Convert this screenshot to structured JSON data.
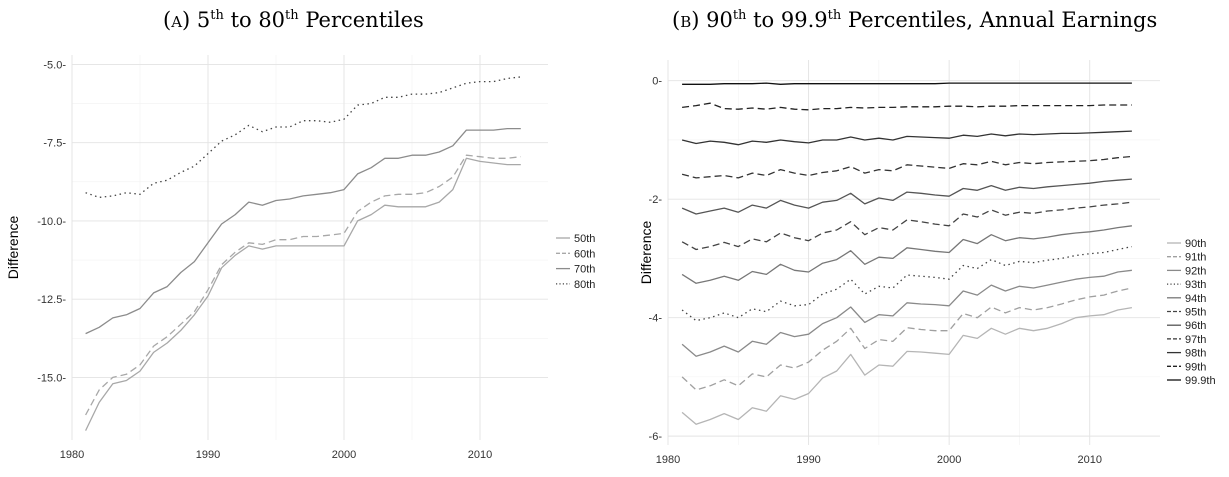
{
  "panel_a_title": {
    "prefix": "(",
    "sc": "A",
    "mid": ") 5",
    "sup1": "th",
    "mid2": " to 80",
    "sup2": "th",
    "rest": " Percentiles"
  },
  "panel_b_title": {
    "prefix": "(",
    "sc": "B",
    "mid": ") 90",
    "sup1": "th",
    "mid2": " to 99.9",
    "sup2": "th",
    "rest": " Percentiles, Annual Earnings"
  },
  "chart_data": [
    {
      "type": "line",
      "title": "(A) 5th to 80th Percentiles",
      "xlabel": "",
      "ylabel": "Difference",
      "xlim": [
        1980,
        2015
      ],
      "ylim": [
        -17,
        -4.7
      ],
      "x_ticks": [
        1980,
        1990,
        2000,
        2010
      ],
      "y_ticks": [
        -5.0,
        -7.5,
        -10.0,
        -12.5,
        -15.0
      ],
      "y_tick_labels": [
        "-5.0-",
        "-7.5-",
        "-10.0-",
        "-12.5-",
        "-15.0-"
      ],
      "grid": true,
      "legend_position": "right",
      "x": [
        1981,
        1982,
        1983,
        1984,
        1985,
        1986,
        1987,
        1988,
        1989,
        1990,
        1991,
        1992,
        1993,
        1994,
        1995,
        1996,
        1997,
        1998,
        1999,
        2000,
        2001,
        2002,
        2003,
        2004,
        2005,
        2006,
        2007,
        2008,
        2009,
        2010,
        2011,
        2012,
        2013
      ],
      "series": [
        {
          "name": "50th",
          "color": "#a8a8a8",
          "dash": "solid",
          "values": [
            -16.7,
            -15.8,
            -15.2,
            -15.1,
            -14.8,
            -14.2,
            -13.9,
            -13.5,
            -13.0,
            -12.4,
            -11.5,
            -11.1,
            -10.8,
            -10.9,
            -10.8,
            -10.8,
            -10.8,
            -10.8,
            -10.8,
            -10.8,
            -10.0,
            -9.8,
            -9.5,
            -9.55,
            -9.55,
            -9.55,
            -9.4,
            -9.0,
            -8.0,
            -8.1,
            -8.15,
            -8.2,
            -8.2
          ]
        },
        {
          "name": "60th",
          "color": "#a8a8a8",
          "dash": "dashed",
          "values": [
            -16.2,
            -15.4,
            -15.0,
            -14.9,
            -14.6,
            -14.0,
            -13.7,
            -13.3,
            -12.9,
            -12.2,
            -11.4,
            -11.0,
            -10.7,
            -10.75,
            -10.6,
            -10.6,
            -10.5,
            -10.5,
            -10.45,
            -10.4,
            -9.7,
            -9.4,
            -9.2,
            -9.15,
            -9.15,
            -9.1,
            -8.9,
            -8.6,
            -7.9,
            -7.95,
            -8.0,
            -8.0,
            -7.95
          ]
        },
        {
          "name": "70th",
          "color": "#8c8c8c",
          "dash": "solid",
          "values": [
            -13.6,
            -13.4,
            -13.1,
            -13.0,
            -12.8,
            -12.3,
            -12.1,
            -11.65,
            -11.3,
            -10.7,
            -10.1,
            -9.8,
            -9.4,
            -9.5,
            -9.35,
            -9.3,
            -9.2,
            -9.15,
            -9.1,
            -9.0,
            -8.5,
            -8.3,
            -8.0,
            -8.0,
            -7.9,
            -7.9,
            -7.8,
            -7.6,
            -7.1,
            -7.1,
            -7.1,
            -7.05,
            -7.05
          ]
        },
        {
          "name": "80th",
          "color": "#444444",
          "dash": "dotted",
          "values": [
            -9.1,
            -9.25,
            -9.2,
            -9.1,
            -9.15,
            -8.8,
            -8.7,
            -8.45,
            -8.25,
            -7.85,
            -7.45,
            -7.25,
            -6.95,
            -7.15,
            -7.0,
            -7.0,
            -6.8,
            -6.8,
            -6.85,
            -6.75,
            -6.3,
            -6.25,
            -6.05,
            -6.05,
            -5.95,
            -5.95,
            -5.9,
            -5.75,
            -5.6,
            -5.55,
            -5.55,
            -5.45,
            -5.4
          ]
        }
      ]
    },
    {
      "type": "line",
      "title": "(B) 90th to 99.9th Percentiles, Annual Earnings",
      "xlabel": "",
      "ylabel": "Difference",
      "xlim": [
        1980,
        2015
      ],
      "ylim": [
        -6.15,
        0.35
      ],
      "x_ticks": [
        1980,
        1990,
        2000,
        2010
      ],
      "y_ticks": [
        0,
        -2,
        -4,
        -6
      ],
      "y_tick_labels": [
        "0-",
        "-2-",
        "-4-",
        "-6-"
      ],
      "grid": true,
      "legend_position": "right",
      "x": [
        1981,
        1982,
        1983,
        1984,
        1985,
        1986,
        1987,
        1988,
        1989,
        1990,
        1991,
        1992,
        1993,
        1994,
        1995,
        1996,
        1997,
        1998,
        1999,
        2000,
        2001,
        2002,
        2003,
        2004,
        2005,
        2006,
        2007,
        2008,
        2009,
        2010,
        2011,
        2012,
        2013
      ],
      "series": [
        {
          "name": "90th",
          "color": "#b5b5b5",
          "dash": "solid",
          "values": [
            -5.6,
            -5.8,
            -5.72,
            -5.62,
            -5.72,
            -5.52,
            -5.58,
            -5.32,
            -5.38,
            -5.28,
            -5.02,
            -4.9,
            -4.62,
            -4.97,
            -4.8,
            -4.82,
            -4.57,
            -4.58,
            -4.6,
            -4.62,
            -4.3,
            -4.35,
            -4.18,
            -4.28,
            -4.18,
            -4.22,
            -4.18,
            -4.1,
            -4.0,
            -3.97,
            -3.95,
            -3.87,
            -3.83
          ]
        },
        {
          "name": "91th",
          "color": "#a0a0a0",
          "dash": "dashed",
          "values": [
            -5.0,
            -5.22,
            -5.15,
            -5.05,
            -5.15,
            -4.95,
            -5.0,
            -4.8,
            -4.85,
            -4.75,
            -4.55,
            -4.4,
            -4.18,
            -4.52,
            -4.37,
            -4.4,
            -4.17,
            -4.2,
            -4.22,
            -4.22,
            -3.93,
            -4.0,
            -3.82,
            -3.92,
            -3.83,
            -3.87,
            -3.83,
            -3.77,
            -3.7,
            -3.65,
            -3.62,
            -3.55,
            -3.5
          ]
        },
        {
          "name": "92th",
          "color": "#8a8a8a",
          "dash": "solid",
          "values": [
            -4.45,
            -4.65,
            -4.58,
            -4.48,
            -4.58,
            -4.4,
            -4.45,
            -4.25,
            -4.32,
            -4.28,
            -4.1,
            -4.0,
            -3.82,
            -4.08,
            -3.95,
            -3.97,
            -3.75,
            -3.77,
            -3.78,
            -3.8,
            -3.55,
            -3.62,
            -3.45,
            -3.55,
            -3.47,
            -3.5,
            -3.45,
            -3.4,
            -3.35,
            -3.32,
            -3.3,
            -3.23,
            -3.2
          ]
        },
        {
          "name": "93th",
          "color": "#444444",
          "dash": "dotted",
          "values": [
            -3.87,
            -4.05,
            -4.0,
            -3.92,
            -4.0,
            -3.85,
            -3.9,
            -3.72,
            -3.8,
            -3.78,
            -3.6,
            -3.52,
            -3.35,
            -3.6,
            -3.47,
            -3.5,
            -3.28,
            -3.3,
            -3.32,
            -3.35,
            -3.12,
            -3.17,
            -3.02,
            -3.12,
            -3.05,
            -3.07,
            -3.03,
            -3.0,
            -2.95,
            -2.92,
            -2.9,
            -2.85,
            -2.8
          ]
        },
        {
          "name": "94th",
          "color": "#777777",
          "dash": "solid",
          "values": [
            -3.27,
            -3.42,
            -3.37,
            -3.3,
            -3.37,
            -3.22,
            -3.27,
            -3.1,
            -3.2,
            -3.23,
            -3.08,
            -3.02,
            -2.87,
            -3.1,
            -2.98,
            -3.0,
            -2.82,
            -2.85,
            -2.88,
            -2.9,
            -2.68,
            -2.75,
            -2.6,
            -2.7,
            -2.65,
            -2.67,
            -2.64,
            -2.6,
            -2.57,
            -2.55,
            -2.52,
            -2.48,
            -2.45
          ]
        },
        {
          "name": "95th",
          "color": "#444444",
          "dash": "dashed",
          "values": [
            -2.72,
            -2.85,
            -2.8,
            -2.73,
            -2.8,
            -2.67,
            -2.72,
            -2.57,
            -2.65,
            -2.7,
            -2.57,
            -2.52,
            -2.38,
            -2.6,
            -2.48,
            -2.52,
            -2.35,
            -2.38,
            -2.42,
            -2.45,
            -2.25,
            -2.3,
            -2.18,
            -2.27,
            -2.22,
            -2.24,
            -2.2,
            -2.18,
            -2.15,
            -2.13,
            -2.1,
            -2.08,
            -2.05
          ]
        },
        {
          "name": "96th",
          "color": "#555555",
          "dash": "solid",
          "values": [
            -2.15,
            -2.25,
            -2.2,
            -2.15,
            -2.22,
            -2.1,
            -2.15,
            -2.02,
            -2.1,
            -2.15,
            -2.05,
            -2.02,
            -1.9,
            -2.08,
            -1.98,
            -2.02,
            -1.88,
            -1.9,
            -1.93,
            -1.95,
            -1.82,
            -1.85,
            -1.77,
            -1.85,
            -1.8,
            -1.82,
            -1.79,
            -1.77,
            -1.75,
            -1.73,
            -1.7,
            -1.68,
            -1.66
          ]
        },
        {
          "name": "97th",
          "color": "#333333",
          "dash": "dashed",
          "values": [
            -1.58,
            -1.64,
            -1.62,
            -1.6,
            -1.64,
            -1.56,
            -1.6,
            -1.5,
            -1.56,
            -1.6,
            -1.55,
            -1.52,
            -1.45,
            -1.56,
            -1.5,
            -1.52,
            -1.42,
            -1.44,
            -1.46,
            -1.48,
            -1.4,
            -1.42,
            -1.36,
            -1.42,
            -1.38,
            -1.4,
            -1.38,
            -1.37,
            -1.36,
            -1.35,
            -1.33,
            -1.3,
            -1.28
          ]
        },
        {
          "name": "98th",
          "color": "#333333",
          "dash": "solid",
          "values": [
            -1.0,
            -1.06,
            -1.02,
            -1.04,
            -1.08,
            -1.02,
            -1.04,
            -1.0,
            -1.03,
            -1.05,
            -1.0,
            -1.0,
            -0.95,
            -1.0,
            -0.97,
            -1.0,
            -0.94,
            -0.95,
            -0.96,
            -0.97,
            -0.92,
            -0.94,
            -0.9,
            -0.93,
            -0.9,
            -0.91,
            -0.9,
            -0.89,
            -0.89,
            -0.88,
            -0.87,
            -0.86,
            -0.85
          ]
        },
        {
          "name": "99th",
          "color": "#222222",
          "dash": "dashed",
          "values": [
            -0.45,
            -0.42,
            -0.38,
            -0.47,
            -0.48,
            -0.46,
            -0.48,
            -0.45,
            -0.48,
            -0.49,
            -0.47,
            -0.47,
            -0.45,
            -0.46,
            -0.45,
            -0.45,
            -0.44,
            -0.44,
            -0.44,
            -0.43,
            -0.43,
            -0.44,
            -0.43,
            -0.43,
            -0.42,
            -0.42,
            -0.42,
            -0.42,
            -0.42,
            -0.42,
            -0.41,
            -0.41,
            -0.41
          ]
        },
        {
          "name": "99.9th",
          "color": "#111111",
          "dash": "solid",
          "values": [
            -0.06,
            -0.06,
            -0.06,
            -0.05,
            -0.05,
            -0.05,
            -0.04,
            -0.06,
            -0.05,
            -0.05,
            -0.05,
            -0.05,
            -0.05,
            -0.05,
            -0.05,
            -0.05,
            -0.05,
            -0.05,
            -0.05,
            -0.04,
            -0.04,
            -0.04,
            -0.04,
            -0.04,
            -0.04,
            -0.04,
            -0.04,
            -0.04,
            -0.04,
            -0.04,
            -0.04,
            -0.04,
            -0.04
          ]
        }
      ]
    }
  ]
}
